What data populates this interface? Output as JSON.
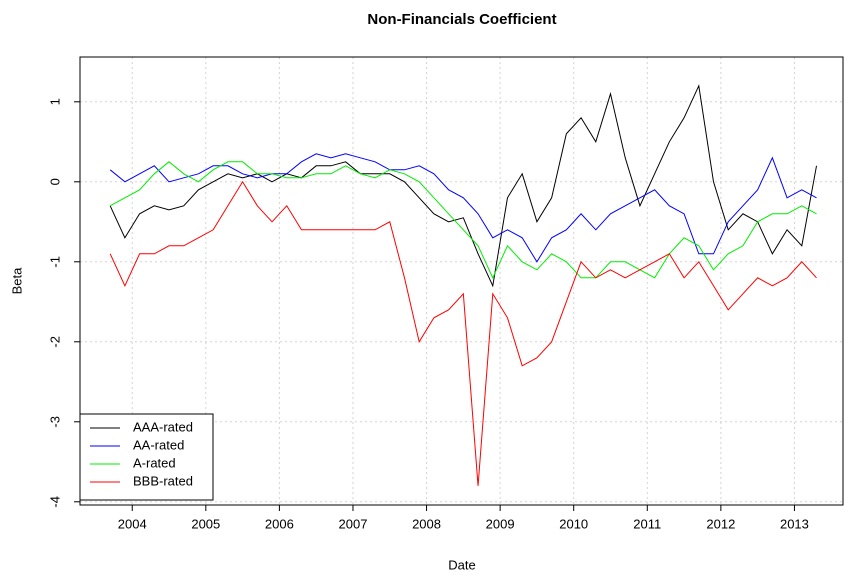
{
  "chart_data": {
    "type": "line",
    "title": "Non-Financials Coefficient",
    "x_label": "Date",
    "y_label": "Beta",
    "x": [
      2003.7,
      2003.9,
      2004.1,
      2004.3,
      2004.5,
      2004.7,
      2004.9,
      2005.1,
      2005.3,
      2005.5,
      2005.7,
      2005.9,
      2006.1,
      2006.3,
      2006.5,
      2006.7,
      2006.9,
      2007.1,
      2007.3,
      2007.5,
      2007.7,
      2007.9,
      2008.1,
      2008.3,
      2008.5,
      2008.7,
      2008.9,
      2009.1,
      2009.3,
      2009.5,
      2009.7,
      2009.9,
      2010.1,
      2010.3,
      2010.5,
      2010.7,
      2010.9,
      2011.1,
      2011.3,
      2011.5,
      2011.7,
      2011.9,
      2012.1,
      2012.3,
      2012.5,
      2012.7,
      2012.9,
      2013.1,
      2013.3
    ],
    "series": [
      {
        "name": "AAA-rated",
        "color": "#000000",
        "values": [
          -0.3,
          -0.7,
          -0.4,
          -0.3,
          -0.35,
          -0.3,
          -0.1,
          0.0,
          0.1,
          0.05,
          0.1,
          0.0,
          0.1,
          0.05,
          0.2,
          0.2,
          0.25,
          0.1,
          0.1,
          0.1,
          0.0,
          -0.2,
          -0.4,
          -0.5,
          -0.45,
          -0.9,
          -1.3,
          -0.2,
          0.1,
          -0.5,
          -0.2,
          0.6,
          0.8,
          0.5,
          1.1,
          0.3,
          -0.3,
          0.1,
          0.5,
          0.8,
          1.2,
          0.0,
          -0.6,
          -0.4,
          -0.5,
          -0.9,
          -0.6,
          -0.8,
          0.2
        ]
      },
      {
        "name": "AA-rated",
        "color": "#0000ff",
        "values": [
          0.15,
          0.0,
          0.1,
          0.2,
          0.0,
          0.05,
          0.1,
          0.2,
          0.2,
          0.1,
          0.05,
          0.1,
          0.1,
          0.25,
          0.35,
          0.3,
          0.35,
          0.3,
          0.25,
          0.15,
          0.15,
          0.2,
          0.1,
          -0.1,
          -0.2,
          -0.4,
          -0.7,
          -0.6,
          -0.7,
          -1.0,
          -0.7,
          -0.6,
          -0.4,
          -0.6,
          -0.4,
          -0.3,
          -0.2,
          -0.1,
          -0.3,
          -0.4,
          -0.9,
          -0.9,
          -0.5,
          -0.3,
          -0.1,
          0.3,
          -0.2,
          -0.1,
          -0.2
        ]
      },
      {
        "name": "A-rated",
        "color": "#00ee00",
        "values": [
          -0.3,
          -0.2,
          -0.1,
          0.1,
          0.25,
          0.1,
          0.0,
          0.15,
          0.25,
          0.25,
          0.1,
          0.1,
          0.05,
          0.05,
          0.1,
          0.1,
          0.2,
          0.1,
          0.05,
          0.15,
          0.1,
          0.0,
          -0.2,
          -0.4,
          -0.6,
          -0.8,
          -1.2,
          -0.8,
          -1.0,
          -1.1,
          -0.9,
          -1.0,
          -1.2,
          -1.2,
          -1.0,
          -1.0,
          -1.1,
          -1.2,
          -0.9,
          -0.7,
          -0.8,
          -1.1,
          -0.9,
          -0.8,
          -0.5,
          -0.4,
          -0.4,
          -0.3,
          -0.4
        ]
      },
      {
        "name": "BBB-rated",
        "color": "#ff0000",
        "values": [
          -0.9,
          -1.3,
          -0.9,
          -0.9,
          -0.8,
          -0.8,
          -0.7,
          -0.6,
          -0.3,
          0.0,
          -0.3,
          -0.5,
          -0.3,
          -0.6,
          -0.6,
          -0.6,
          -0.6,
          -0.6,
          -0.6,
          -0.5,
          -1.2,
          -2.0,
          -1.7,
          -1.6,
          -1.4,
          -3.8,
          -1.4,
          -1.7,
          -2.3,
          -2.2,
          -2.0,
          -1.5,
          -1.0,
          -1.2,
          -1.1,
          -1.2,
          -1.1,
          -1.0,
          -0.9,
          -1.2,
          -1.0,
          -1.3,
          -1.6,
          -1.4,
          -1.2,
          -1.3,
          -1.2,
          -1.0,
          -1.2
        ]
      }
    ],
    "xlim": [
      2003.29,
      2013.66
    ],
    "xticks": [
      2004,
      2005,
      2006,
      2007,
      2008,
      2009,
      2010,
      2011,
      2012,
      2013
    ],
    "ylim": [
      -4.04,
      1.56
    ],
    "yticks": [
      1,
      0,
      -1,
      -2,
      -3,
      -4
    ],
    "grid": true,
    "legend": "bottom-left"
  }
}
